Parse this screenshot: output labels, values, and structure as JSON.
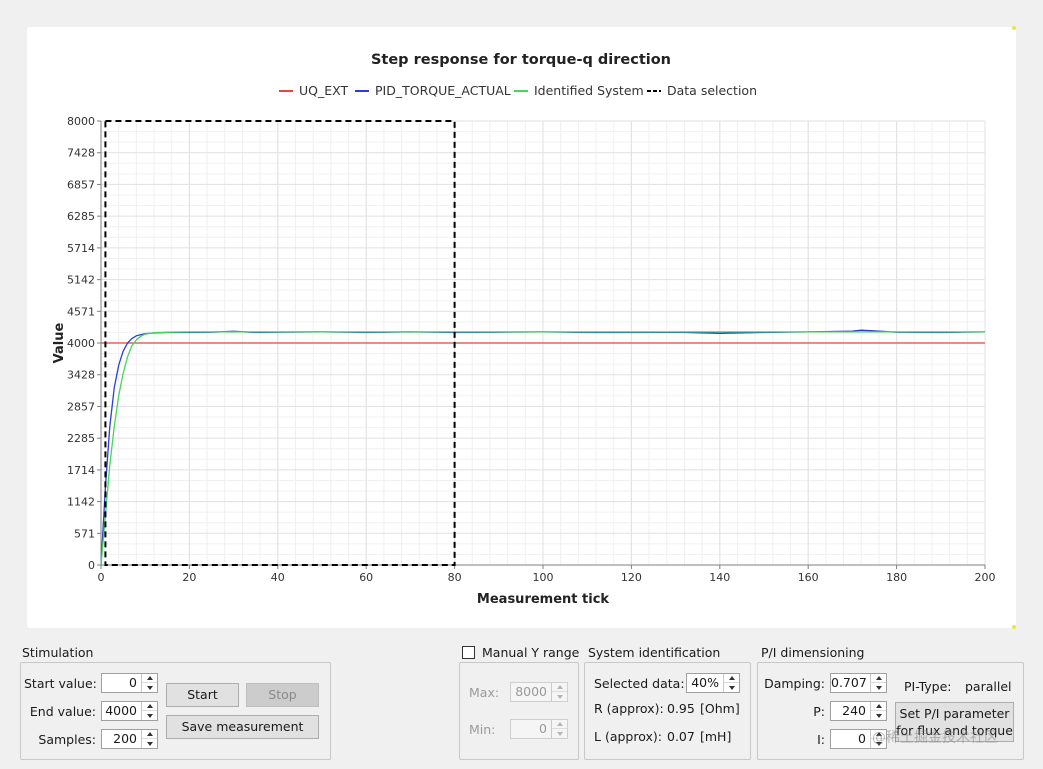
{
  "chart_data": {
    "type": "line",
    "title": "Step response for torque-q direction",
    "xlabel": "Measurement tick",
    "ylabel": "Value",
    "xlim": [
      0,
      200
    ],
    "ylim": [
      0,
      8000
    ],
    "x_ticks": [
      0,
      20,
      40,
      60,
      80,
      100,
      120,
      140,
      160,
      180,
      200
    ],
    "y_ticks": [
      0,
      571,
      1142,
      1714,
      2285,
      2857,
      3428,
      4000,
      4571,
      5142,
      5714,
      6285,
      6857,
      7428,
      8000
    ],
    "legend_position": "top",
    "grid": true,
    "series": [
      {
        "name": "UQ_EXT",
        "color": "#e8453c",
        "x": [
          0,
          200
        ],
        "y": [
          4000,
          4000
        ]
      },
      {
        "name": "PID_TORQUE_ACTUAL",
        "color": "#2b3fd6",
        "x": [
          0,
          1,
          2,
          3,
          4,
          5,
          6,
          7,
          8,
          10,
          12,
          15,
          20,
          25,
          30,
          35,
          40,
          50,
          60,
          70,
          80,
          90,
          100,
          110,
          120,
          130,
          140,
          150,
          160,
          170,
          172,
          180,
          190,
          200
        ],
        "y": [
          0,
          1400,
          2500,
          3200,
          3600,
          3850,
          4000,
          4080,
          4130,
          4170,
          4180,
          4190,
          4190,
          4195,
          4210,
          4190,
          4195,
          4200,
          4190,
          4200,
          4190,
          4195,
          4200,
          4190,
          4190,
          4195,
          4175,
          4190,
          4200,
          4215,
          4230,
          4195,
          4190,
          4200
        ]
      },
      {
        "name": "Identified System",
        "color": "#45d65a",
        "x": [
          0,
          1,
          2,
          3,
          4,
          5,
          6,
          7,
          8,
          9,
          10,
          12,
          15,
          20,
          30,
          40,
          60,
          80,
          100,
          120,
          140,
          160,
          180,
          200
        ],
        "y": [
          0,
          900,
          1800,
          2500,
          3050,
          3450,
          3750,
          3950,
          4060,
          4120,
          4160,
          4185,
          4195,
          4200,
          4200,
          4200,
          4200,
          4200,
          4200,
          4200,
          4200,
          4200,
          4200,
          4200
        ]
      },
      {
        "name": "Data selection",
        "color": "#000000",
        "style": "dashed",
        "x": [
          1,
          80
        ],
        "y": [
          0,
          8000
        ]
      }
    ]
  },
  "stimulation": {
    "title": "Stimulation",
    "start_label": "Start value:",
    "start_value": "0",
    "end_label": "End value:",
    "end_value": "4000",
    "samples_label": "Samples:",
    "samples_value": "200",
    "start_button": "Start",
    "stop_button": "Stop",
    "save_button": "Save measurement"
  },
  "manual_y": {
    "checkbox_label": "Manual Y  range",
    "checked": false,
    "max_label": "Max:",
    "max_value": "8000",
    "min_label": "Min:",
    "min_value": "0"
  },
  "system_identification": {
    "title": "System identification",
    "selected_label": "Selected data:",
    "selected_value": "40%",
    "r_label": "R (approx):",
    "r_value": "0.95",
    "r_unit": "[Ohm]",
    "l_label": "L (approx):",
    "l_value": "0.07",
    "l_unit": "[mH]"
  },
  "pi_dimensioning": {
    "title": "P/I dimensioning",
    "damping_label": "Damping:",
    "damping_value": "0.707",
    "p_label": "P:",
    "p_value": "240",
    "i_label": "I:",
    "i_value": "0",
    "pi_type_label": "PI-Type:",
    "pi_type_value": "parallel",
    "set_button_line1": "Set P/I parameter",
    "set_button_line2": "for flux and torque"
  },
  "watermark": "@稀土掘金技术社区",
  "colors": {
    "panel": "#ffffff",
    "background": "#f0f0f0",
    "grid": "#e3e3e3"
  }
}
